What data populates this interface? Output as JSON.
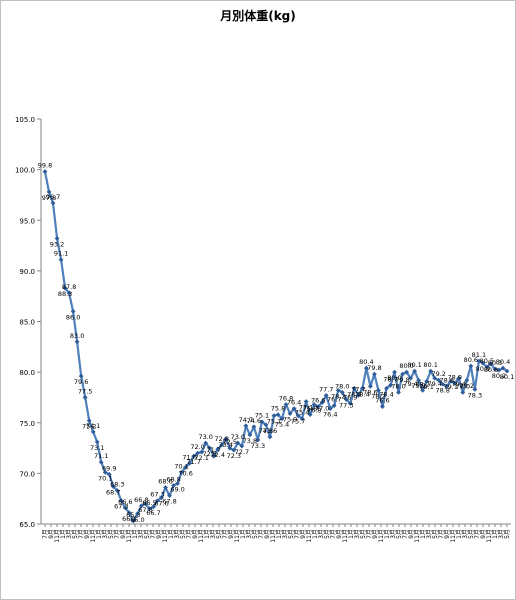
{
  "chart_data": {
    "type": "line",
    "title": "月別体重(kg)",
    "xlabel": "",
    "ylabel": "",
    "ylim": [
      65.0,
      105.0
    ],
    "yticks": [
      "65.0",
      "70.0",
      "75.0",
      "80.0",
      "85.0",
      "90.0",
      "95.0",
      "100.0",
      "105.0"
    ],
    "grid": false,
    "legend": "none",
    "line_color": "#4f81bd",
    "marker_color": "#2f5d9a",
    "x_tick_labels": [
      "7月",
      "9月",
      "11月",
      "1月",
      "3月",
      "5月",
      "7月",
      "9月",
      "11月",
      "1月",
      "3月",
      "5月",
      "7月",
      "9月",
      "11月",
      "1月",
      "3月",
      "5月",
      "7月",
      "9月",
      "11月",
      "1月",
      "3月",
      "5月",
      "7月",
      "9月",
      "11月",
      "1月",
      "3月",
      "5月",
      "7月",
      "9月",
      "11月",
      "1月",
      "3月",
      "5月",
      "7月",
      "9月",
      "11月",
      "1月",
      "3月",
      "5月",
      "7月",
      "9月",
      "11月",
      "1月",
      "3月",
      "5月",
      "7月",
      "9月",
      "11月",
      "1月",
      "3月",
      "5月",
      "7月",
      "9月",
      "11月",
      "1月",
      "3月",
      "5月",
      "7月",
      "9月",
      "11月",
      "1月",
      "3月",
      "5月",
      "7月",
      "9月",
      "11月",
      "1月",
      "3月",
      "5月",
      "7月",
      "9月",
      "11月",
      "1月",
      "3月",
      "5月"
    ],
    "series": [
      {
        "values": [
          99.8,
          97.8,
          96.7,
          93.2,
          91.1,
          88.3,
          87.8,
          86.0,
          83.0,
          79.6,
          77.5,
          75.2,
          74.1,
          73.1,
          71.1,
          70.1,
          69.9,
          68.7,
          68.3,
          67.3,
          66.6,
          66.1,
          65.3,
          66.0,
          66.8,
          67.0,
          66.5,
          66.7,
          67.3,
          67.6,
          68.6,
          67.8,
          68.8,
          69.0,
          70.1,
          70.6,
          71.0,
          71.7,
          72.0,
          72.1,
          73.0,
          72.5,
          71.7,
          72.4,
          72.8,
          73.4,
          72.5,
          72.3,
          73.0,
          72.7,
          74.7,
          73.8,
          74.6,
          73.3,
          75.1,
          74.8,
          73.6,
          75.7,
          75.8,
          75.4,
          76.8,
          75.9,
          76.4,
          75.7,
          75.4,
          77.1,
          75.8,
          76.8,
          76.6,
          77.0,
          77.7,
          76.4,
          76.7,
          78.2,
          78.0,
          77.3,
          76.9,
          78.4,
          77.7,
          78.4,
          80.4,
          78.6,
          79.8,
          78.2,
          76.6,
          78.4,
          78.7,
          80.0,
          78.0,
          79.8,
          80.0,
          79.4,
          80.1,
          79.2,
          78.2,
          79.1,
          80.1,
          79.4,
          79.2,
          78.8,
          78.6,
          79.1,
          78.9,
          79.4,
          78.0,
          79.2,
          80.6,
          78.3,
          81.1,
          80.9,
          80.5,
          80.8,
          80.3,
          80.2,
          80.4,
          80.1
        ]
      }
    ]
  }
}
